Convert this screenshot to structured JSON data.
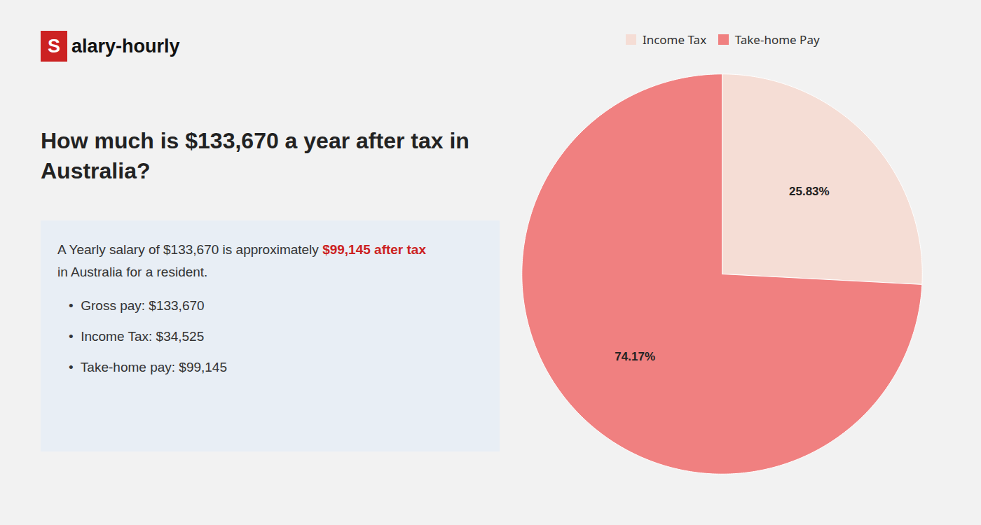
{
  "chart_data": {
    "type": "pie",
    "title": "How much is $133,670 a year after tax in\nAustralia?",
    "annotations": [
      "S",
      "alary-hourly",
      "A Yearly salary of $133,670 is approximately ",
      "$99,145 after tax",
      "in Australia for a resident.",
      "•  Gross pay: $133,670",
      "•  Income Tax: $34,525",
      "•  Take-home pay: $99,145"
    ],
    "categories": [
      "Income Tax",
      "Take-home Pay"
    ],
    "values": [
      25.83,
      74.17
    ],
    "value_labels": [
      "25.83%",
      "74.17%"
    ],
    "colors": [
      "#f5ddd5",
      "#f08080"
    ],
    "data_labels": true,
    "legend": "top"
  }
}
